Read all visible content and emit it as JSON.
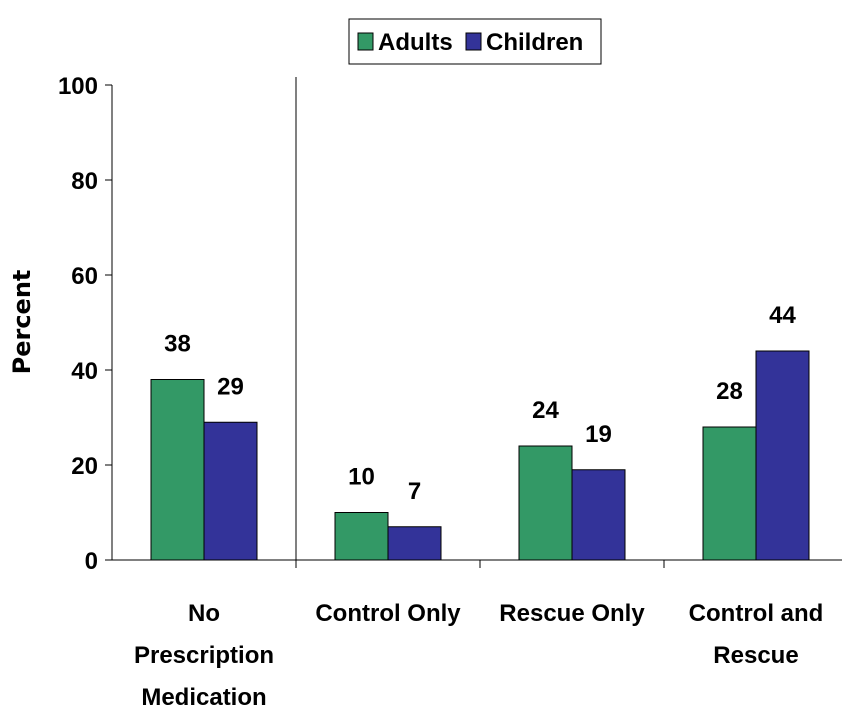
{
  "chart_data": {
    "type": "bar",
    "categories": [
      [
        "No",
        "Prescription",
        "Medication"
      ],
      [
        "Control Only"
      ],
      [
        "Rescue Only"
      ],
      [
        "Control and",
        "Rescue"
      ]
    ],
    "series": [
      {
        "name": "Adults",
        "values": [
          38,
          10,
          24,
          28
        ],
        "color": "#339966"
      },
      {
        "name": "Children",
        "values": [
          29,
          7,
          19,
          44
        ],
        "color": "#333399"
      }
    ],
    "title": "",
    "xlabel": "",
    "ylabel": "Percent",
    "ylim": [
      0,
      100
    ],
    "yticks": [
      0,
      20,
      40,
      60,
      80,
      100
    ],
    "grid": false,
    "legend_position": "top-center",
    "divider_after_category": 0
  }
}
